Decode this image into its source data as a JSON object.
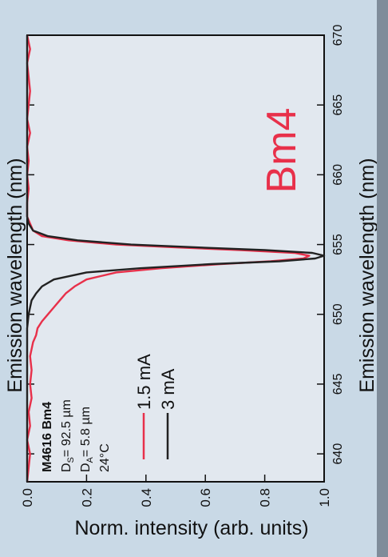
{
  "chart_data": {
    "type": "line",
    "orientation": "rotated 90 degrees clockwise",
    "xlabel": "Emission wavelength (nm)",
    "xlabel_top": "Emission wavelength (nm)",
    "ylabel": "Norm. intensity (arb. units)",
    "xlim": [
      638,
      670
    ],
    "ylim": [
      0.0,
      1.0
    ],
    "x_ticks": [
      "640",
      "645",
      "650",
      "655",
      "660",
      "665",
      "670"
    ],
    "y_ticks": [
      "0.0",
      "0.2",
      "0.4",
      "0.6",
      "0.8",
      "1.0"
    ],
    "annotation": {
      "sample": "M4616 Bm4",
      "ds_label": "D",
      "ds_sub": "S",
      "ds_value": "= 92.5 µm",
      "da_label": "D",
      "da_sub": "A",
      "da_value": "= 5.8 µm",
      "temperature": "24°C"
    },
    "panel_label": "Bm4",
    "series": [
      {
        "name": "1.5 mA",
        "color": "#e8304a",
        "x": [
          638,
          640,
          641,
          642,
          643,
          644,
          645,
          646,
          647,
          648,
          648.5,
          649,
          649.5,
          650,
          650.5,
          651,
          651.5,
          652,
          652.5,
          653,
          653.3,
          653.6,
          653.8,
          654.0,
          654.2,
          654.4,
          654.6,
          654.8,
          655.0,
          655.3,
          655.6,
          656.0,
          656.5,
          657,
          658,
          659,
          660,
          661,
          662,
          663,
          664,
          665,
          666,
          667,
          668,
          669,
          670
        ],
        "y": [
          0.0,
          0.01,
          0.0,
          0.01,
          0.005,
          0.015,
          0.01,
          0.015,
          0.01,
          0.02,
          0.03,
          0.035,
          0.05,
          0.07,
          0.09,
          0.11,
          0.13,
          0.16,
          0.2,
          0.3,
          0.45,
          0.65,
          0.82,
          0.93,
          0.95,
          0.9,
          0.72,
          0.5,
          0.3,
          0.14,
          0.05,
          0.02,
          0.01,
          0.0,
          0.0,
          0.005,
          0.0,
          0.005,
          0.0,
          0.01,
          0.0,
          0.005,
          0.01,
          0.005,
          0.0,
          0.01,
          0.0
        ]
      },
      {
        "name": "3 mA",
        "color": "#222222",
        "x": [
          638,
          640,
          642,
          644,
          646,
          648,
          649,
          650,
          650.5,
          651,
          651.5,
          652,
          652.5,
          653,
          653.3,
          653.6,
          653.8,
          654.0,
          654.2,
          654.4,
          654.6,
          654.8,
          655.0,
          655.3,
          655.6,
          656.0,
          656.5,
          657,
          658,
          660,
          662,
          664,
          666,
          668,
          670
        ],
        "y": [
          0.0,
          0.0,
          0.0,
          0.0,
          0.0,
          0.0,
          0.0,
          0.005,
          0.01,
          0.015,
          0.03,
          0.05,
          0.09,
          0.2,
          0.38,
          0.62,
          0.85,
          0.97,
          1.0,
          0.96,
          0.8,
          0.57,
          0.35,
          0.17,
          0.07,
          0.02,
          0.005,
          0.0,
          0.0,
          0.0,
          0.0,
          0.0,
          0.0,
          0.0,
          0.0
        ]
      }
    ],
    "grid": false,
    "legend": "inside, lower left"
  }
}
